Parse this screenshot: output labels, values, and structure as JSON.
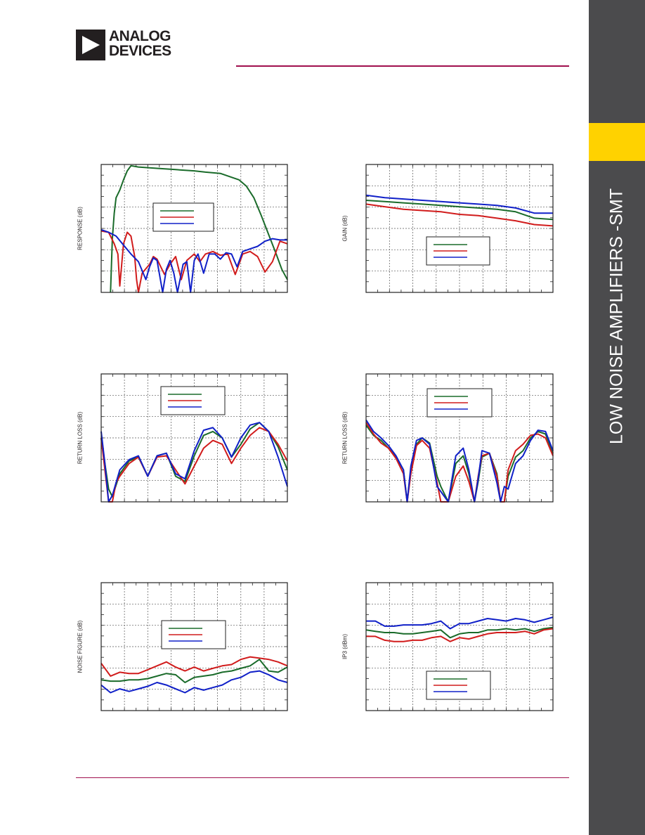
{
  "header": {
    "brand_line1": "ANALOG",
    "brand_line2": "DEVICES"
  },
  "sidebar": {
    "title": "LOW NOISE AMPLIFIERS -SMT",
    "colors": {
      "bar": "#4b4b4d",
      "tab": "#ffd200",
      "rule": "#a0104e"
    }
  },
  "series_colors": {
    "green": "#1a6b2a",
    "red": "#d11c1c",
    "blue": "#1020c8"
  },
  "chart_data": [
    {
      "type": "line",
      "ylabel": "RESPONSE (dB)",
      "grid": true,
      "legend": "center-left",
      "xlim": [
        0,
        1
      ],
      "ylim": [
        0,
        1
      ],
      "series": [
        {
          "color": "green",
          "x": [
            0.05,
            0.06,
            0.07,
            0.08,
            0.1,
            0.12,
            0.14,
            0.16,
            0.2,
            0.3,
            0.4,
            0.5,
            0.56,
            0.64,
            0.7,
            0.74,
            0.78,
            0.82,
            0.86,
            0.9,
            0.94,
            0.97,
            1.0
          ],
          "y": [
            0.0,
            0.42,
            0.62,
            0.74,
            0.8,
            0.88,
            0.95,
            0.99,
            0.98,
            0.97,
            0.96,
            0.95,
            0.94,
            0.93,
            0.9,
            0.88,
            0.83,
            0.74,
            0.6,
            0.45,
            0.3,
            0.18,
            0.1
          ]
        },
        {
          "color": "red",
          "x": [
            0.0,
            0.04,
            0.07,
            0.09,
            0.1,
            0.12,
            0.14,
            0.16,
            0.18,
            0.19,
            0.2,
            0.22,
            0.26,
            0.28,
            0.3,
            0.34,
            0.37,
            0.4,
            0.43,
            0.46,
            0.5,
            0.53,
            0.56,
            0.6,
            0.64,
            0.68,
            0.72,
            0.76,
            0.8,
            0.84,
            0.86,
            0.88,
            0.92,
            0.96,
            1.0
          ],
          "y": [
            0.48,
            0.47,
            0.38,
            0.3,
            0.05,
            0.38,
            0.47,
            0.44,
            0.28,
            0.1,
            0.0,
            0.15,
            0.22,
            0.28,
            0.26,
            0.14,
            0.22,
            0.28,
            0.1,
            0.25,
            0.3,
            0.24,
            0.3,
            0.32,
            0.29,
            0.3,
            0.14,
            0.3,
            0.32,
            0.28,
            0.22,
            0.16,
            0.24,
            0.4,
            0.38
          ]
        },
        {
          "color": "blue",
          "x": [
            0.0,
            0.04,
            0.08,
            0.12,
            0.16,
            0.2,
            0.24,
            0.26,
            0.28,
            0.3,
            0.33,
            0.35,
            0.37,
            0.39,
            0.41,
            0.44,
            0.46,
            0.48,
            0.5,
            0.52,
            0.55,
            0.58,
            0.61,
            0.64,
            0.67,
            0.7,
            0.73,
            0.76,
            0.8,
            0.84,
            0.88,
            0.92,
            0.96,
            1.0
          ],
          "y": [
            0.49,
            0.47,
            0.44,
            0.37,
            0.3,
            0.24,
            0.1,
            0.2,
            0.27,
            0.25,
            0.0,
            0.18,
            0.25,
            0.15,
            0.0,
            0.22,
            0.24,
            0.0,
            0.25,
            0.3,
            0.15,
            0.3,
            0.3,
            0.26,
            0.31,
            0.3,
            0.2,
            0.32,
            0.34,
            0.36,
            0.4,
            0.42,
            0.41,
            0.41
          ]
        }
      ]
    },
    {
      "type": "line",
      "ylabel": "GAIN (dB)",
      "grid": true,
      "legend": "center",
      "xlim": [
        0,
        1
      ],
      "ylim": [
        0,
        1
      ],
      "series": [
        {
          "color": "green",
          "x": [
            0,
            0.1,
            0.2,
            0.3,
            0.4,
            0.5,
            0.6,
            0.7,
            0.8,
            0.9,
            1.0
          ],
          "y": [
            0.72,
            0.71,
            0.7,
            0.69,
            0.68,
            0.67,
            0.66,
            0.65,
            0.63,
            0.58,
            0.57
          ]
        },
        {
          "color": "red",
          "x": [
            0,
            0.1,
            0.2,
            0.3,
            0.4,
            0.5,
            0.6,
            0.7,
            0.8,
            0.9,
            1.0
          ],
          "y": [
            0.69,
            0.67,
            0.65,
            0.64,
            0.63,
            0.61,
            0.6,
            0.58,
            0.56,
            0.53,
            0.52
          ]
        },
        {
          "color": "blue",
          "x": [
            0,
            0.1,
            0.2,
            0.3,
            0.4,
            0.5,
            0.6,
            0.7,
            0.8,
            0.9,
            1.0
          ],
          "y": [
            0.76,
            0.74,
            0.73,
            0.72,
            0.71,
            0.7,
            0.69,
            0.68,
            0.66,
            0.62,
            0.62
          ]
        }
      ]
    },
    {
      "type": "line",
      "ylabel": "RETURN LOSS (dB)",
      "grid": true,
      "legend": "top-center",
      "xlim": [
        0,
        1
      ],
      "ylim": [
        0,
        1
      ],
      "series": [
        {
          "color": "green",
          "x": [
            0,
            0.02,
            0.04,
            0.06,
            0.1,
            0.15,
            0.2,
            0.25,
            0.3,
            0.35,
            0.4,
            0.45,
            0.5,
            0.55,
            0.6,
            0.65,
            0.7,
            0.75,
            0.8,
            0.85,
            0.9,
            0.95,
            1.0
          ],
          "y": [
            0.5,
            0.3,
            0.1,
            0.04,
            0.22,
            0.32,
            0.35,
            0.2,
            0.36,
            0.38,
            0.2,
            0.16,
            0.36,
            0.52,
            0.55,
            0.5,
            0.35,
            0.45,
            0.57,
            0.62,
            0.55,
            0.43,
            0.25
          ]
        },
        {
          "color": "red",
          "x": [
            0,
            0.02,
            0.04,
            0.06,
            0.08,
            0.1,
            0.15,
            0.2,
            0.25,
            0.3,
            0.35,
            0.4,
            0.45,
            0.5,
            0.55,
            0.6,
            0.65,
            0.7,
            0.75,
            0.8,
            0.85,
            0.9,
            0.95,
            1.0
          ],
          "y": [
            0.5,
            0.25,
            0.0,
            0.0,
            0.15,
            0.2,
            0.3,
            0.35,
            0.2,
            0.35,
            0.36,
            0.25,
            0.14,
            0.28,
            0.42,
            0.48,
            0.45,
            0.3,
            0.42,
            0.52,
            0.58,
            0.55,
            0.45,
            0.32
          ]
        },
        {
          "color": "blue",
          "x": [
            0,
            0.02,
            0.04,
            0.06,
            0.1,
            0.15,
            0.2,
            0.25,
            0.3,
            0.35,
            0.4,
            0.45,
            0.5,
            0.55,
            0.6,
            0.65,
            0.7,
            0.75,
            0.8,
            0.85,
            0.9,
            0.95,
            1.0
          ],
          "y": [
            0.55,
            0.3,
            0.0,
            0.05,
            0.25,
            0.33,
            0.36,
            0.2,
            0.36,
            0.38,
            0.22,
            0.18,
            0.4,
            0.56,
            0.58,
            0.5,
            0.35,
            0.5,
            0.6,
            0.62,
            0.55,
            0.35,
            0.12
          ]
        }
      ]
    },
    {
      "type": "line",
      "ylabel": "RETURN LOSS (dB)",
      "grid": true,
      "legend": "top-center",
      "xlim": [
        0,
        1
      ],
      "ylim": [
        0,
        1
      ],
      "series": [
        {
          "color": "green",
          "x": [
            0,
            0.04,
            0.08,
            0.12,
            0.16,
            0.2,
            0.22,
            0.24,
            0.27,
            0.3,
            0.34,
            0.38,
            0.4,
            0.44,
            0.48,
            0.52,
            0.55,
            0.58,
            0.6,
            0.62,
            0.66,
            0.7,
            0.72,
            0.74,
            0.76,
            0.8,
            0.84,
            0.88,
            0.92,
            0.96,
            1.0
          ],
          "y": [
            0.6,
            0.52,
            0.48,
            0.42,
            0.35,
            0.25,
            0.0,
            0.25,
            0.45,
            0.5,
            0.46,
            0.2,
            0.12,
            0.0,
            0.3,
            0.36,
            0.22,
            0.0,
            0.16,
            0.35,
            0.38,
            0.22,
            0.0,
            0.0,
            0.2,
            0.35,
            0.4,
            0.5,
            0.55,
            0.53,
            0.38
          ]
        },
        {
          "color": "red",
          "x": [
            0,
            0.04,
            0.08,
            0.12,
            0.16,
            0.2,
            0.22,
            0.24,
            0.27,
            0.3,
            0.34,
            0.38,
            0.4,
            0.44,
            0.48,
            0.52,
            0.55,
            0.58,
            0.6,
            0.62,
            0.66,
            0.7,
            0.72,
            0.74,
            0.76,
            0.8,
            0.84,
            0.88,
            0.92,
            0.96,
            1.0
          ],
          "y": [
            0.62,
            0.53,
            0.46,
            0.42,
            0.34,
            0.22,
            0.0,
            0.22,
            0.44,
            0.48,
            0.42,
            0.15,
            0.0,
            0.0,
            0.2,
            0.28,
            0.16,
            0.0,
            0.2,
            0.36,
            0.38,
            0.2,
            0.0,
            0.0,
            0.25,
            0.4,
            0.45,
            0.52,
            0.53,
            0.5,
            0.36
          ]
        },
        {
          "color": "blue",
          "x": [
            0,
            0.04,
            0.08,
            0.12,
            0.16,
            0.2,
            0.22,
            0.24,
            0.27,
            0.3,
            0.34,
            0.38,
            0.4,
            0.44,
            0.48,
            0.52,
            0.55,
            0.58,
            0.6,
            0.62,
            0.66,
            0.7,
            0.72,
            0.74,
            0.76,
            0.8,
            0.84,
            0.88,
            0.92,
            0.96,
            1.0
          ],
          "y": [
            0.64,
            0.55,
            0.5,
            0.44,
            0.36,
            0.25,
            0.0,
            0.28,
            0.48,
            0.5,
            0.45,
            0.12,
            0.08,
            0.0,
            0.36,
            0.42,
            0.25,
            0.0,
            0.18,
            0.4,
            0.38,
            0.15,
            0.0,
            0.12,
            0.1,
            0.3,
            0.36,
            0.48,
            0.56,
            0.55,
            0.4
          ]
        }
      ]
    },
    {
      "type": "line",
      "ylabel": "NOISE FIGURE (dB)",
      "grid": true,
      "legend": "center",
      "xlim": [
        0,
        1
      ],
      "ylim": [
        0,
        1
      ],
      "series": [
        {
          "color": "green",
          "x": [
            0,
            0.05,
            0.1,
            0.15,
            0.2,
            0.25,
            0.3,
            0.35,
            0.4,
            0.45,
            0.5,
            0.55,
            0.6,
            0.65,
            0.7,
            0.75,
            0.8,
            0.85,
            0.9,
            0.95,
            1.0
          ],
          "y": [
            0.24,
            0.23,
            0.23,
            0.24,
            0.24,
            0.25,
            0.27,
            0.29,
            0.28,
            0.22,
            0.26,
            0.27,
            0.28,
            0.3,
            0.31,
            0.33,
            0.35,
            0.4,
            0.31,
            0.3,
            0.34
          ]
        },
        {
          "color": "red",
          "x": [
            0,
            0.05,
            0.1,
            0.15,
            0.2,
            0.25,
            0.3,
            0.35,
            0.4,
            0.45,
            0.5,
            0.55,
            0.6,
            0.65,
            0.7,
            0.75,
            0.8,
            0.85,
            0.9,
            0.95,
            1.0
          ],
          "y": [
            0.37,
            0.27,
            0.3,
            0.29,
            0.29,
            0.32,
            0.35,
            0.38,
            0.34,
            0.31,
            0.34,
            0.31,
            0.33,
            0.35,
            0.36,
            0.4,
            0.42,
            0.41,
            0.4,
            0.38,
            0.35
          ]
        },
        {
          "color": "blue",
          "x": [
            0,
            0.05,
            0.1,
            0.15,
            0.2,
            0.25,
            0.3,
            0.35,
            0.4,
            0.45,
            0.5,
            0.55,
            0.6,
            0.65,
            0.7,
            0.75,
            0.8,
            0.85,
            0.9,
            0.95,
            1.0
          ],
          "y": [
            0.2,
            0.14,
            0.17,
            0.15,
            0.17,
            0.19,
            0.22,
            0.2,
            0.17,
            0.14,
            0.18,
            0.16,
            0.18,
            0.2,
            0.24,
            0.26,
            0.3,
            0.31,
            0.28,
            0.24,
            0.22
          ]
        }
      ]
    },
    {
      "type": "line",
      "ylabel": "IP3 (dBm)",
      "grid": true,
      "legend": "bottom-center",
      "xlim": [
        0,
        1
      ],
      "ylim": [
        0,
        1
      ],
      "series": [
        {
          "color": "green",
          "x": [
            0,
            0.05,
            0.1,
            0.15,
            0.2,
            0.25,
            0.3,
            0.35,
            0.4,
            0.45,
            0.5,
            0.55,
            0.6,
            0.65,
            0.7,
            0.75,
            0.8,
            0.85,
            0.9,
            0.95,
            1.0
          ],
          "y": [
            0.63,
            0.62,
            0.61,
            0.61,
            0.6,
            0.6,
            0.61,
            0.62,
            0.63,
            0.57,
            0.6,
            0.61,
            0.61,
            0.63,
            0.63,
            0.64,
            0.63,
            0.64,
            0.62,
            0.64,
            0.65
          ]
        },
        {
          "color": "red",
          "x": [
            0,
            0.05,
            0.1,
            0.15,
            0.2,
            0.25,
            0.3,
            0.35,
            0.4,
            0.45,
            0.5,
            0.55,
            0.6,
            0.65,
            0.7,
            0.75,
            0.8,
            0.85,
            0.9,
            0.95,
            1.0
          ],
          "y": [
            0.58,
            0.58,
            0.55,
            0.54,
            0.54,
            0.55,
            0.55,
            0.57,
            0.58,
            0.54,
            0.57,
            0.56,
            0.58,
            0.6,
            0.61,
            0.61,
            0.61,
            0.62,
            0.6,
            0.63,
            0.64
          ]
        },
        {
          "color": "blue",
          "x": [
            0,
            0.05,
            0.1,
            0.15,
            0.2,
            0.25,
            0.3,
            0.35,
            0.4,
            0.45,
            0.5,
            0.55,
            0.6,
            0.65,
            0.7,
            0.75,
            0.8,
            0.85,
            0.9,
            0.95,
            1.0
          ],
          "y": [
            0.7,
            0.7,
            0.66,
            0.66,
            0.67,
            0.67,
            0.67,
            0.68,
            0.7,
            0.64,
            0.68,
            0.68,
            0.7,
            0.72,
            0.71,
            0.7,
            0.72,
            0.71,
            0.69,
            0.71,
            0.73
          ]
        }
      ]
    }
  ]
}
